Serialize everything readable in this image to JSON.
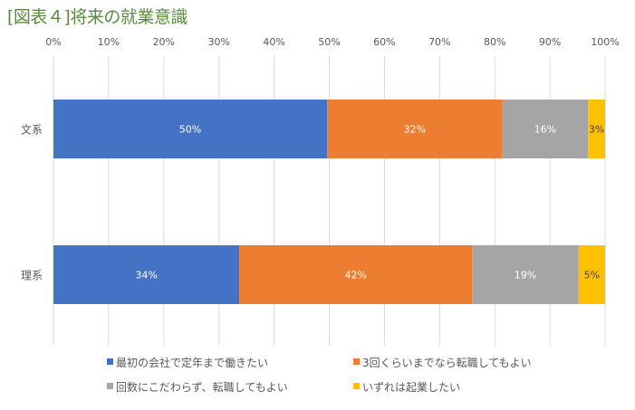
{
  "chart_data": {
    "type": "bar",
    "orientation": "horizontal",
    "stacked": "percent",
    "title": "[図表４]将来の就業意識",
    "categories": [
      "文系",
      "理系"
    ],
    "series": [
      {
        "name": "最初の会社で定年まで働きたい",
        "color": "#4472c4",
        "values": [
          49.6,
          33.7
        ],
        "labels": [
          "50%",
          "34%"
        ]
      },
      {
        "name": "3回くらいまでなら転職してもよい",
        "color": "#ed7d31",
        "values": [
          31.8,
          42.2
        ],
        "labels": [
          "32%",
          "42%"
        ]
      },
      {
        "name": "回数にこだわらず、転職してもよい",
        "color": "#a5a5a5",
        "values": [
          15.5,
          19.3
        ],
        "labels": [
          "16%",
          "19%"
        ]
      },
      {
        "name": "いずれは起業したい",
        "color": "#ffc000",
        "values": [
          3.1,
          4.8
        ],
        "labels": [
          "3%",
          "5%"
        ]
      }
    ],
    "xlim": [
      0,
      100
    ],
    "x_ticks": [
      "0%",
      "10%",
      "20%",
      "30%",
      "40%",
      "50%",
      "60%",
      "70%",
      "80%",
      "90%",
      "100%"
    ],
    "x_axis_position": "top",
    "grid": true,
    "legend": "bottom"
  }
}
